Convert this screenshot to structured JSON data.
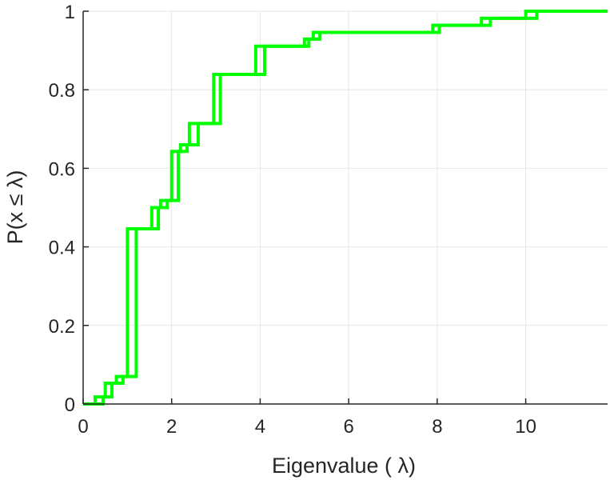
{
  "chart_data": {
    "type": "line",
    "step": true,
    "xlabel": "Eigenvalue ( λ)",
    "ylabel": "P(x ≤ λ)",
    "xlim": [
      0,
      11.85
    ],
    "ylim": [
      0,
      1
    ],
    "grid": true,
    "xticks": [
      0,
      2,
      4,
      6,
      8,
      10
    ],
    "yticks": [
      0,
      0.2,
      0.4,
      0.6,
      0.8,
      1
    ],
    "xtick_labels": [
      "0",
      "2",
      "4",
      "6",
      "8",
      "10"
    ],
    "ytick_labels": [
      "0",
      "0.2",
      "0.4",
      "0.6",
      "0.8",
      "1"
    ],
    "color": "#00ff00",
    "series": [
      {
        "x": [
          0,
          0.27,
          0.5,
          0.75,
          1.0,
          1.25,
          1.55,
          1.75,
          2.0,
          2.2,
          2.4,
          2.7,
          2.95,
          3.2,
          3.9,
          4.15,
          5.0,
          5.2,
          7.9,
          9.0,
          10.0,
          11.85
        ],
        "y": [
          0,
          0.018,
          0.053,
          0.07,
          0.446,
          0.446,
          0.5,
          0.518,
          0.643,
          0.66,
          0.714,
          0.714,
          0.839,
          0.839,
          0.911,
          0.911,
          0.929,
          0.946,
          0.964,
          0.982,
          1.0,
          1.0
        ]
      },
      {
        "x": [
          0,
          0.45,
          0.65,
          0.9,
          1.2,
          1.4,
          1.7,
          1.9,
          2.15,
          2.35,
          2.6,
          2.85,
          3.1,
          3.35,
          4.1,
          4.25,
          5.1,
          5.35,
          8.05,
          9.2,
          10.25,
          11.85
        ],
        "y": [
          0,
          0.018,
          0.053,
          0.07,
          0.446,
          0.446,
          0.5,
          0.518,
          0.643,
          0.66,
          0.714,
          0.714,
          0.839,
          0.839,
          0.911,
          0.911,
          0.929,
          0.946,
          0.964,
          0.982,
          1.0,
          1.0
        ]
      }
    ]
  }
}
